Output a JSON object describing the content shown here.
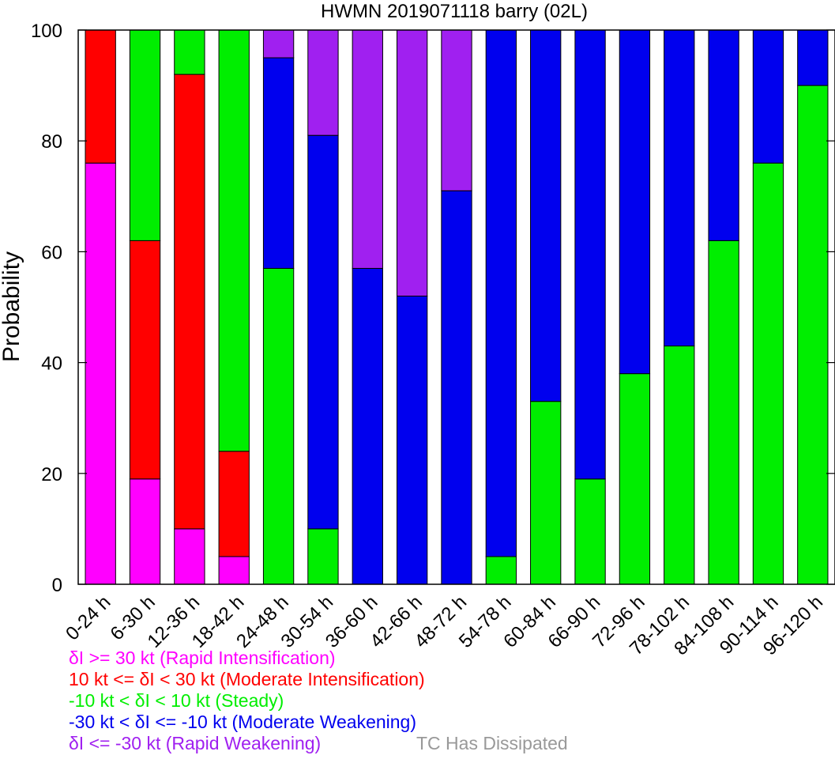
{
  "chart_data": {
    "type": "bar",
    "stacked": true,
    "title": "HWMN 2019071118 barry (02L)",
    "xlabel": "",
    "ylabel": "Probability",
    "ylim": [
      0,
      100
    ],
    "yticks": [
      0,
      20,
      40,
      60,
      80,
      100
    ],
    "grid": false,
    "legend_placement": "bottom-left",
    "categories": [
      "0-24 h",
      "6-30 h",
      "12-36 h",
      "18-42 h",
      "24-48 h",
      "30-54 h",
      "36-60 h",
      "42-66 h",
      "48-72 h",
      "54-78 h",
      "60-84 h",
      "66-90 h",
      "72-96 h",
      "78-102 h",
      "84-108 h",
      "90-114 h",
      "96-120 h"
    ],
    "series": [
      {
        "name": "δI >= 30 kt (Rapid Intensification)",
        "color": "#ff00ff",
        "values": [
          76,
          19,
          10,
          5,
          0,
          0,
          0,
          0,
          0,
          0,
          0,
          0,
          0,
          0,
          0,
          0,
          0
        ]
      },
      {
        "name": "10 kt <= δI < 30 kt (Moderate Intensification)",
        "color": "#ff0000",
        "values": [
          24,
          43,
          82,
          19,
          0,
          0,
          0,
          0,
          0,
          0,
          0,
          0,
          0,
          0,
          0,
          0,
          0
        ]
      },
      {
        "name": "-10 kt < δI < 10 kt (Steady)",
        "color": "#00ee00",
        "values": [
          0,
          38,
          8,
          76,
          57,
          10,
          0,
          0,
          0,
          5,
          33,
          19,
          38,
          43,
          62,
          76,
          90
        ]
      },
      {
        "name": "-30 kt < δI <= -10 kt (Moderate Weakening)",
        "color": "#0000ee",
        "values": [
          0,
          0,
          0,
          0,
          38,
          71,
          57,
          52,
          71,
          95,
          67,
          81,
          62,
          57,
          38,
          24,
          10
        ]
      },
      {
        "name": "δI <= -30 kt (Rapid Weakening)",
        "color": "#a020f0",
        "values": [
          0,
          0,
          0,
          0,
          5,
          19,
          43,
          48,
          29,
          0,
          0,
          0,
          0,
          0,
          0,
          0,
          0
        ]
      }
    ],
    "extra_legend": {
      "label": "TC Has Dissipated",
      "color": "#999999"
    }
  }
}
